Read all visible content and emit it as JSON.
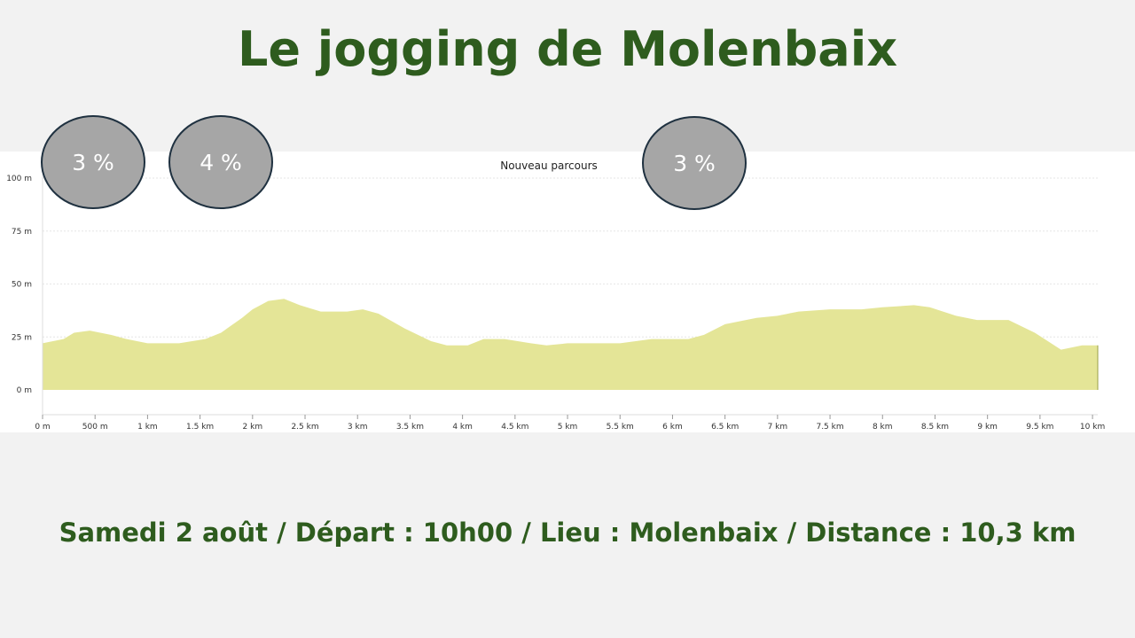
{
  "page": {
    "title": "Le jogging de Molenbaix",
    "footer": "Samedi 2 août / Départ : 10h00 / Lieu : Molenbaix / Distance : 10,3 km"
  },
  "gradient_badges": [
    {
      "label": "3 %"
    },
    {
      "label": "4 %"
    },
    {
      "label": "3 %"
    }
  ],
  "colors": {
    "title_green": "#2e5c1e",
    "area_fill": "#e4e597",
    "badge_fill": "#a6a6a6",
    "badge_border": "#1f3140"
  },
  "chart_data": {
    "type": "area",
    "title": "Nouveau parcours",
    "xlabel": "",
    "ylabel": "",
    "xlim": [
      0,
      10.05
    ],
    "ylim": [
      0,
      100
    ],
    "grid": true,
    "x_ticks": [
      0,
      0.5,
      1,
      1.5,
      2,
      2.5,
      3,
      3.5,
      4,
      4.5,
      5,
      5.5,
      6,
      6.5,
      7,
      7.5,
      8,
      8.5,
      9,
      9.5,
      10
    ],
    "x_tick_labels": [
      "0 m",
      "500 m",
      "1 km",
      "1.5 km",
      "2 km",
      "2.5 km",
      "3 km",
      "3.5 km",
      "4 km",
      "4.5 km",
      "5 km",
      "5.5 km",
      "6 km",
      "6.5 km",
      "7 km",
      "7.5 km",
      "8 km",
      "8.5 km",
      "9 km",
      "9.5 km",
      "10 km"
    ],
    "y_ticks": [
      0,
      25,
      50,
      75,
      100
    ],
    "y_tick_labels": [
      "0 m",
      "25 m",
      "50 m",
      "75 m",
      "100 m"
    ],
    "series": [
      {
        "x": [
          0,
          0.2,
          0.3,
          0.45,
          0.65,
          0.8,
          1.0,
          1.3,
          1.55,
          1.7,
          1.9,
          2.0,
          2.15,
          2.3,
          2.45,
          2.65,
          2.9,
          3.05,
          3.2,
          3.45,
          3.7,
          3.85,
          4.05,
          4.2,
          4.4,
          4.65,
          4.8,
          5.0,
          5.5,
          5.8,
          6.15,
          6.3,
          6.5,
          6.8,
          7.0,
          7.2,
          7.5,
          7.8,
          8.0,
          8.3,
          8.45,
          8.7,
          8.9,
          9.2,
          9.45,
          9.7,
          9.9,
          10.05
        ],
        "y": [
          22,
          24,
          27,
          28,
          26,
          24,
          22,
          22,
          24,
          27,
          34,
          38,
          42,
          43,
          40,
          37,
          37,
          38,
          36,
          29,
          23,
          21,
          21,
          24,
          24,
          22,
          21,
          22,
          22,
          24,
          24,
          26,
          31,
          34,
          35,
          37,
          38,
          38,
          39,
          40,
          39,
          35,
          33,
          33,
          27,
          19,
          21,
          21
        ]
      }
    ]
  }
}
